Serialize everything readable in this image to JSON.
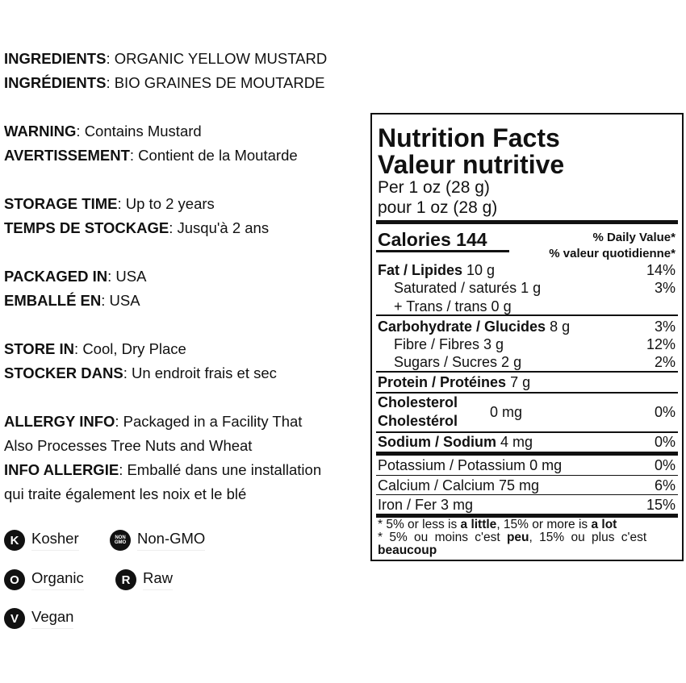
{
  "info": [
    {
      "label": "INGREDIENTS",
      "value": ": ORGANIC YELLOW MUSTARD"
    },
    {
      "label": "INGRÉDIENTS",
      "value": ": BIO GRAINES DE MOUTARDE"
    },
    {
      "label": "WARNING",
      "value": ": Contains Mustard"
    },
    {
      "label": "AVERTISSEMENT",
      "value": ": Contient de la Moutarde"
    },
    {
      "label": "STORAGE TIME",
      "value": ": Up to 2 years"
    },
    {
      "label": "TEMPS DE STOCKAGE",
      "value": ": Jusqu'à 2 ans"
    },
    {
      "label": "PACKAGED IN",
      "value": ": USA"
    },
    {
      "label": "EMBALLÉ EN",
      "value": ": USA"
    },
    {
      "label": "STORE IN",
      "value": ": Cool, Dry Place"
    },
    {
      "label": "STOCKER DANS",
      "value": ": Un endroit frais et sec"
    },
    {
      "label": "ALLERGY INFO",
      "value": ": Packaged in a Facility That"
    },
    {
      "label": "",
      "value": "Also Processes Tree Nuts and Wheat"
    },
    {
      "label": "INFO ALLERGIE",
      "value": ": Emballé dans une installation"
    },
    {
      "label": "",
      "value": "qui traite également les noix et le blé"
    }
  ],
  "badges": [
    {
      "icon": "K",
      "label": "Kosher"
    },
    {
      "icon": "NON GMO",
      "label": "Non-GMO"
    },
    {
      "icon": "O",
      "label": "Organic"
    },
    {
      "icon": "R",
      "label": "Raw"
    },
    {
      "icon": "V",
      "label": "Vegan"
    }
  ],
  "nutrition": {
    "title_en": "Nutrition Facts",
    "title_fr": "Valeur nutritive",
    "serving_en": "Per 1 oz (28 g)",
    "serving_fr": "pour 1 oz (28 g)",
    "calories_label": "Calories",
    "calories_value": "144",
    "dv_en": "% Daily Value*",
    "dv_fr": "% valeur quotidienne*",
    "fat": {
      "label": "Fat / Lipides",
      "amount": "10 g",
      "dv": "14%"
    },
    "saturated": {
      "label": "Saturated / saturés 1 g",
      "dv": "3%"
    },
    "trans": {
      "label": "+ Trans / trans 0 g"
    },
    "carb": {
      "label": "Carbohydrate / Glucides",
      "amount": "8 g",
      "dv": "3%"
    },
    "fibre": {
      "label": "Fibre / Fibres 3 g",
      "dv": "12%"
    },
    "sugars": {
      "label": "Sugars / Sucres 2 g",
      "dv": "2%"
    },
    "protein": {
      "label": "Protein / Protéines",
      "amount": "7 g"
    },
    "cholesterol": {
      "label_en": "Cholesterol",
      "label_fr": "Cholestérol",
      "amount": "0 mg",
      "dv": "0%"
    },
    "sodium": {
      "label": "Sodium / Sodium",
      "amount": "4 mg",
      "dv": "0%"
    },
    "potassium": {
      "label": "Potassium / Potassium 0 mg",
      "dv": "0%"
    },
    "calcium": {
      "label": "Calcium / Calcium 75 mg",
      "dv": "6%"
    },
    "iron": {
      "label": "Iron / Fer 3 mg",
      "dv": "15%"
    },
    "foot1": {
      "a": "* 5% or less is ",
      "b": "a little",
      "c": ", 15% or more is ",
      "d": "a lot"
    },
    "foot2": {
      "a": "* 5% ou moins c'est ",
      "b": "peu",
      "c": ", 15% ou plus c'est",
      "d": "beaucoup"
    }
  }
}
